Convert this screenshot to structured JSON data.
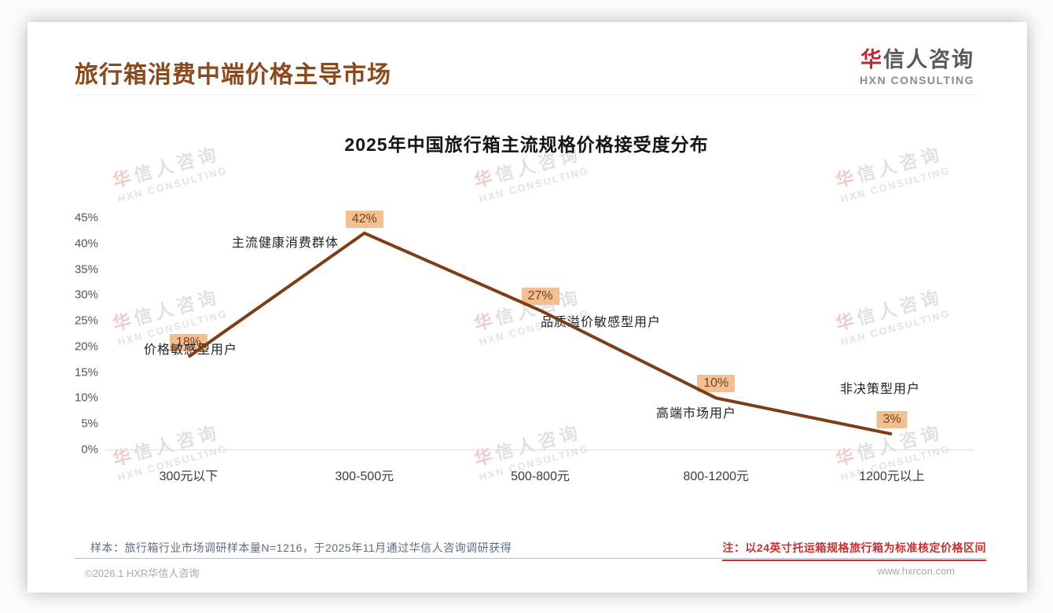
{
  "header": {
    "title": "旅行箱消费中端价格主导市场"
  },
  "logo": {
    "cn_first": "华",
    "cn_rest": "信人咨询",
    "en": "HXN CONSULTING"
  },
  "watermark": {
    "cn_first": "华",
    "cn_rest": "信人咨询",
    "en": "HXN CONSULTING"
  },
  "chart_data": {
    "type": "line",
    "title": "2025年中国旅行箱主流规格价格接受度分布",
    "categories": [
      "300元以下",
      "300-500元",
      "500-800元",
      "800-1200元",
      "1200元以上"
    ],
    "values": [
      18,
      42,
      27,
      10,
      3
    ],
    "value_labels": [
      "18%",
      "42%",
      "27%",
      "10%",
      "3%"
    ],
    "point_annotations": [
      "价格敏感型用户",
      "主流健康消费群体",
      "品质溢价敏感型用户",
      "高端市场用户",
      "非决策型用户"
    ],
    "y_ticks": [
      "45%",
      "40%",
      "35%",
      "30%",
      "25%",
      "20%",
      "15%",
      "10%",
      "5%",
      "0%"
    ],
    "y_tick_values": [
      45,
      40,
      35,
      30,
      25,
      20,
      15,
      10,
      5,
      0
    ],
    "ylim": [
      0,
      45
    ],
    "grid": false,
    "legend": "none",
    "line_color": "#7d3e16",
    "badge_bg": "#f2bf92",
    "badge_text_color": "#7c4018"
  },
  "footer": {
    "sample_note": "样本：旅行箱行业市场调研样本量N=1216，于2025年11月通过华信人咨询调研获得",
    "price_note": "注：以24英寸托运箱规格旅行箱为标准核定价格区间",
    "copyright": "©2026.1 HXR华信人咨询",
    "website": "www.hxrcon.com"
  }
}
